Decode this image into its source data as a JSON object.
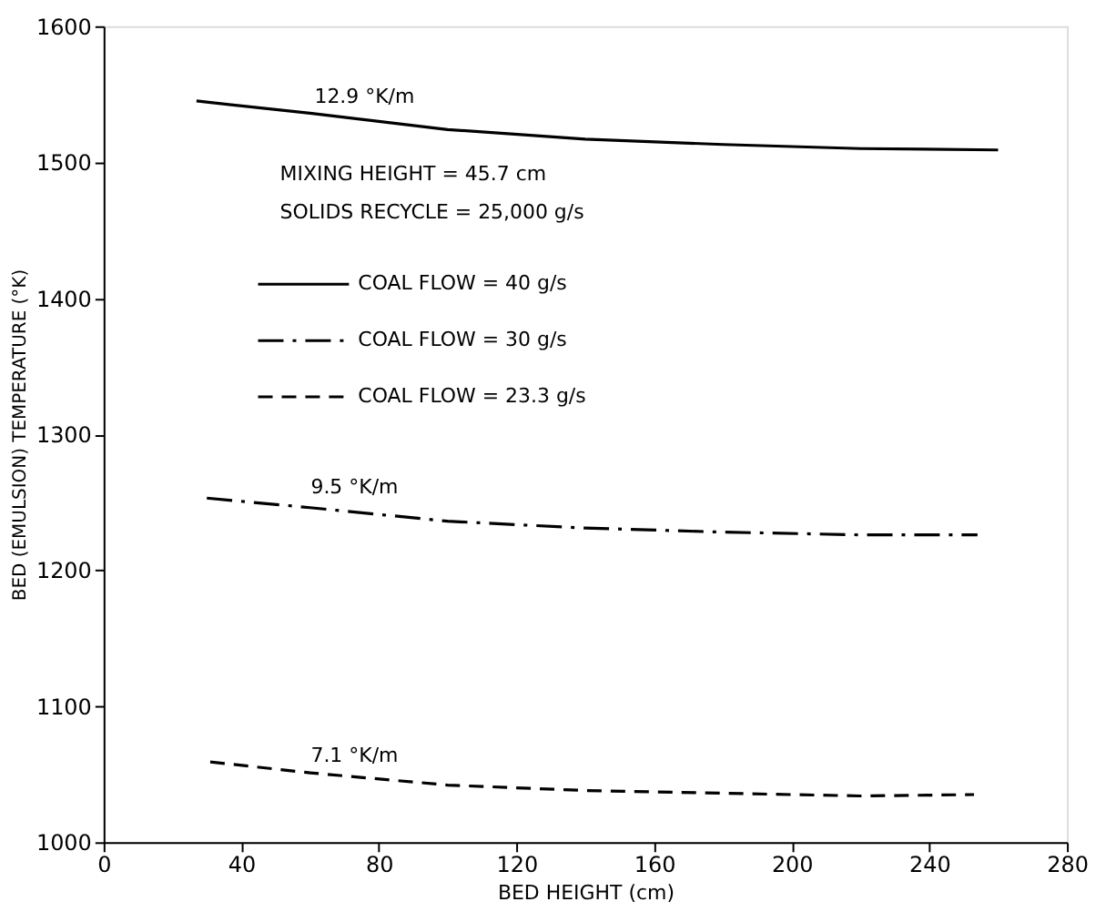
{
  "chart_data": {
    "type": "line",
    "xlabel": "BED HEIGHT (cm)",
    "ylabel": "BED (EMULSION) TEMPERATURE (°K)",
    "xlim": [
      0,
      280
    ],
    "xticks": [
      0,
      40,
      80,
      120,
      160,
      200,
      240,
      280
    ],
    "ylim": [
      1000,
      1600
    ],
    "yticks": [
      1000,
      1100,
      1200,
      1300,
      1400,
      1500,
      1600
    ],
    "grid": false,
    "legend": "top left",
    "marker": "none",
    "series": [
      {
        "name": "COAL FLOW = 40 g/s",
        "color": "#000000",
        "line_style": "solid",
        "x": [
          27,
          60,
          100,
          140,
          180,
          220,
          260
        ],
        "values": [
          1545,
          1536,
          1524,
          1517,
          1513,
          1510,
          1509
        ]
      },
      {
        "name": "COAL FLOW = 30 g/s",
        "color": "#000000",
        "line_style": "dashdot",
        "x": [
          30,
          60,
          100,
          140,
          180,
          220,
          254
        ],
        "values": [
          1253,
          1246,
          1236,
          1231,
          1228,
          1226,
          1226
        ]
      },
      {
        "name": "COAL FLOW = 23.3 g/s",
        "color": "#000000",
        "line_style": "dashed",
        "x": [
          31,
          60,
          100,
          140,
          180,
          220,
          253
        ],
        "values": [
          1059,
          1051,
          1042,
          1038,
          1036,
          1034,
          1035
        ]
      }
    ],
    "annotations": [
      "12.9 °K/m",
      "9.5 °K/m",
      "7.1 °K/m",
      "MIXING HEIGHT   = 45.7 cm",
      "SOLIDS RECYCLE = 25,000 g/s"
    ]
  }
}
